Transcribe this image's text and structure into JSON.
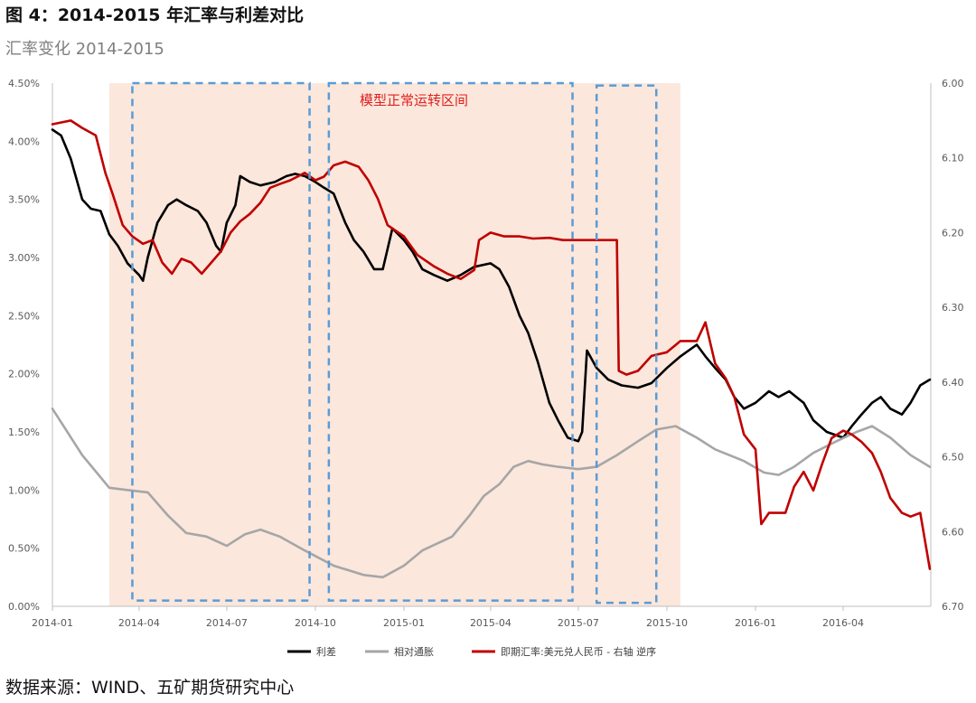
{
  "title": "图 4：2014-2015 年汇率与利差对比",
  "subtitle": "汇率变化 2014-2015",
  "source": "数据来源：WIND、五矿期货研究中心",
  "chart_data": {
    "type": "line",
    "x_ticks": [
      "2014-01",
      "2014-04",
      "2014-07",
      "2014-10",
      "2015-01",
      "2015-04",
      "2015-07",
      "2015-10",
      "2016-01",
      "2016-04"
    ],
    "x_range": [
      "2014-01-01",
      "2016-07-01"
    ],
    "y_left": {
      "ticks": [
        "0.00%",
        "0.50%",
        "1.00%",
        "1.50%",
        "2.00%",
        "2.50%",
        "3.00%",
        "3.50%",
        "4.00%",
        "4.50%"
      ],
      "range": [
        0,
        4.5
      ]
    },
    "y_right": {
      "ticks": [
        "6.00",
        "6.10",
        "6.20",
        "6.30",
        "6.40",
        "6.50",
        "6.60",
        "6.70"
      ],
      "range": [
        6.0,
        6.7
      ],
      "inverted": true
    },
    "grid": false,
    "legend_position": "bottom",
    "shaded_region": {
      "start": "2014-03-01",
      "end": "2015-10-15",
      "color": "#fbe7dc"
    },
    "annotation": {
      "text": "模型正常运转区间",
      "color": "#e02020"
    },
    "dashed_boxes": [
      {
        "start": "2014-03-25",
        "end": "2014-09-25",
        "top": 4.5,
        "bottom": 0.05
      },
      {
        "start": "2014-10-15",
        "end": "2015-06-25",
        "top": 4.5,
        "bottom": 0.05
      },
      {
        "start": "2015-07-20",
        "end": "2015-09-20",
        "top": 4.48,
        "bottom": 0.03
      }
    ],
    "series": [
      {
        "name": "利差",
        "axis": "left",
        "color": "#000000",
        "points": [
          [
            "2014-01-01",
            4.1
          ],
          [
            "2014-01-10",
            4.05
          ],
          [
            "2014-01-20",
            3.85
          ],
          [
            "2014-02-01",
            3.5
          ],
          [
            "2014-02-10",
            3.42
          ],
          [
            "2014-02-20",
            3.4
          ],
          [
            "2014-03-01",
            3.2
          ],
          [
            "2014-03-10",
            3.1
          ],
          [
            "2014-03-20",
            2.95
          ],
          [
            "2014-04-01",
            2.85
          ],
          [
            "2014-04-05",
            2.8
          ],
          [
            "2014-04-10",
            3.0
          ],
          [
            "2014-04-20",
            3.3
          ],
          [
            "2014-05-01",
            3.45
          ],
          [
            "2014-05-10",
            3.5
          ],
          [
            "2014-05-20",
            3.45
          ],
          [
            "2014-06-01",
            3.4
          ],
          [
            "2014-06-10",
            3.3
          ],
          [
            "2014-06-20",
            3.1
          ],
          [
            "2014-06-25",
            3.05
          ],
          [
            "2014-07-01",
            3.3
          ],
          [
            "2014-07-10",
            3.45
          ],
          [
            "2014-07-15",
            3.7
          ],
          [
            "2014-07-25",
            3.65
          ],
          [
            "2014-08-05",
            3.62
          ],
          [
            "2014-08-20",
            3.65
          ],
          [
            "2014-09-01",
            3.7
          ],
          [
            "2014-09-10",
            3.72
          ],
          [
            "2014-09-20",
            3.7
          ],
          [
            "2014-10-01",
            3.65
          ],
          [
            "2014-10-10",
            3.6
          ],
          [
            "2014-10-20",
            3.55
          ],
          [
            "2014-11-01",
            3.3
          ],
          [
            "2014-11-10",
            3.15
          ],
          [
            "2014-11-20",
            3.05
          ],
          [
            "2014-12-01",
            2.9
          ],
          [
            "2014-12-10",
            2.9
          ],
          [
            "2014-12-20",
            3.25
          ],
          [
            "2015-01-01",
            3.15
          ],
          [
            "2015-01-10",
            3.05
          ],
          [
            "2015-01-20",
            2.9
          ],
          [
            "2015-02-01",
            2.85
          ],
          [
            "2015-02-15",
            2.8
          ],
          [
            "2015-03-01",
            2.85
          ],
          [
            "2015-03-15",
            2.92
          ],
          [
            "2015-04-01",
            2.95
          ],
          [
            "2015-04-10",
            2.9
          ],
          [
            "2015-04-20",
            2.75
          ],
          [
            "2015-05-01",
            2.5
          ],
          [
            "2015-05-10",
            2.35
          ],
          [
            "2015-05-20",
            2.1
          ],
          [
            "2015-06-01",
            1.75
          ],
          [
            "2015-06-10",
            1.6
          ],
          [
            "2015-06-20",
            1.45
          ],
          [
            "2015-07-01",
            1.42
          ],
          [
            "2015-07-05",
            1.5
          ],
          [
            "2015-07-10",
            2.2
          ],
          [
            "2015-07-20",
            2.05
          ],
          [
            "2015-08-01",
            1.95
          ],
          [
            "2015-08-15",
            1.9
          ],
          [
            "2015-09-01",
            1.88
          ],
          [
            "2015-09-15",
            1.92
          ],
          [
            "2015-10-01",
            2.05
          ],
          [
            "2015-10-15",
            2.15
          ],
          [
            "2015-11-01",
            2.25
          ],
          [
            "2015-11-10",
            2.15
          ],
          [
            "2015-11-20",
            2.05
          ],
          [
            "2015-12-01",
            1.95
          ],
          [
            "2015-12-10",
            1.8
          ],
          [
            "2015-12-20",
            1.7
          ],
          [
            "2016-01-01",
            1.75
          ],
          [
            "2016-01-15",
            1.85
          ],
          [
            "2016-01-25",
            1.8
          ],
          [
            "2016-02-05",
            1.85
          ],
          [
            "2016-02-20",
            1.75
          ],
          [
            "2016-03-01",
            1.6
          ],
          [
            "2016-03-15",
            1.5
          ],
          [
            "2016-04-01",
            1.45
          ],
          [
            "2016-04-10",
            1.55
          ],
          [
            "2016-04-20",
            1.65
          ],
          [
            "2016-05-01",
            1.75
          ],
          [
            "2016-05-10",
            1.8
          ],
          [
            "2016-05-20",
            1.7
          ],
          [
            "2016-06-01",
            1.65
          ],
          [
            "2016-06-10",
            1.75
          ],
          [
            "2016-06-20",
            1.9
          ],
          [
            "2016-06-30",
            1.95
          ]
        ]
      },
      {
        "name": "相对通胀",
        "axis": "left",
        "color": "#a6a6a6",
        "points": [
          [
            "2014-01-01",
            1.7
          ],
          [
            "2014-02-01",
            1.3
          ],
          [
            "2014-03-01",
            1.02
          ],
          [
            "2014-03-20",
            1.0
          ],
          [
            "2014-04-10",
            0.98
          ],
          [
            "2014-05-01",
            0.78
          ],
          [
            "2014-05-20",
            0.63
          ],
          [
            "2014-06-10",
            0.6
          ],
          [
            "2014-07-01",
            0.52
          ],
          [
            "2014-07-20",
            0.62
          ],
          [
            "2014-08-05",
            0.66
          ],
          [
            "2014-08-25",
            0.6
          ],
          [
            "2014-09-20",
            0.48
          ],
          [
            "2014-10-20",
            0.35
          ],
          [
            "2014-11-20",
            0.27
          ],
          [
            "2014-12-10",
            0.25
          ],
          [
            "2015-01-01",
            0.35
          ],
          [
            "2015-01-20",
            0.48
          ],
          [
            "2015-02-20",
            0.6
          ],
          [
            "2015-03-10",
            0.78
          ],
          [
            "2015-03-25",
            0.95
          ],
          [
            "2015-04-10",
            1.05
          ],
          [
            "2015-04-25",
            1.2
          ],
          [
            "2015-05-10",
            1.25
          ],
          [
            "2015-05-25",
            1.22
          ],
          [
            "2015-06-10",
            1.2
          ],
          [
            "2015-07-01",
            1.18
          ],
          [
            "2015-07-20",
            1.2
          ],
          [
            "2015-08-10",
            1.3
          ],
          [
            "2015-09-01",
            1.42
          ],
          [
            "2015-09-20",
            1.52
          ],
          [
            "2015-10-10",
            1.55
          ],
          [
            "2015-11-01",
            1.45
          ],
          [
            "2015-11-20",
            1.35
          ],
          [
            "2015-12-20",
            1.25
          ],
          [
            "2016-01-10",
            1.15
          ],
          [
            "2016-01-25",
            1.13
          ],
          [
            "2016-02-10",
            1.2
          ],
          [
            "2016-03-01",
            1.32
          ],
          [
            "2016-03-25",
            1.42
          ],
          [
            "2016-04-15",
            1.5
          ],
          [
            "2016-05-01",
            1.55
          ],
          [
            "2016-05-20",
            1.45
          ],
          [
            "2016-06-10",
            1.3
          ],
          [
            "2016-06-30",
            1.2
          ]
        ]
      },
      {
        "name": "即期汇率:美元兑人民币 - 右轴 逆序",
        "axis": "right",
        "color": "#c00000",
        "points": [
          [
            "2014-01-01",
            6.055
          ],
          [
            "2014-01-20",
            6.05
          ],
          [
            "2014-02-01",
            6.06
          ],
          [
            "2014-02-15",
            6.07
          ],
          [
            "2014-02-25",
            6.12
          ],
          [
            "2014-03-05",
            6.15
          ],
          [
            "2014-03-15",
            6.19
          ],
          [
            "2014-03-25",
            6.205
          ],
          [
            "2014-04-05",
            6.215
          ],
          [
            "2014-04-15",
            6.21
          ],
          [
            "2014-04-25",
            6.24
          ],
          [
            "2014-05-05",
            6.255
          ],
          [
            "2014-05-15",
            6.235
          ],
          [
            "2014-05-25",
            6.24
          ],
          [
            "2014-06-05",
            6.255
          ],
          [
            "2014-06-15",
            6.24
          ],
          [
            "2014-06-25",
            6.225
          ],
          [
            "2014-07-05",
            6.2
          ],
          [
            "2014-07-15",
            6.185
          ],
          [
            "2014-07-25",
            6.175
          ],
          [
            "2014-08-05",
            6.16
          ],
          [
            "2014-08-15",
            6.14
          ],
          [
            "2014-08-25",
            6.135
          ],
          [
            "2014-09-05",
            6.13
          ],
          [
            "2014-09-20",
            6.12
          ],
          [
            "2014-10-01",
            6.13
          ],
          [
            "2014-10-10",
            6.125
          ],
          [
            "2014-10-20",
            6.11
          ],
          [
            "2014-11-01",
            6.105
          ],
          [
            "2014-11-15",
            6.112
          ],
          [
            "2014-11-25",
            6.13
          ],
          [
            "2014-12-05",
            6.155
          ],
          [
            "2014-12-15",
            6.19
          ],
          [
            "2015-01-01",
            6.205
          ],
          [
            "2015-01-15",
            6.23
          ],
          [
            "2015-02-01",
            6.245
          ],
          [
            "2015-02-15",
            6.255
          ],
          [
            "2015-03-01",
            6.262
          ],
          [
            "2015-03-15",
            6.25
          ],
          [
            "2015-03-20",
            6.21
          ],
          [
            "2015-04-01",
            6.2
          ],
          [
            "2015-04-15",
            6.205
          ],
          [
            "2015-05-01",
            6.205
          ],
          [
            "2015-05-15",
            6.208
          ],
          [
            "2015-06-01",
            6.207
          ],
          [
            "2015-06-15",
            6.21
          ],
          [
            "2015-07-01",
            6.21
          ],
          [
            "2015-08-10",
            6.21
          ],
          [
            "2015-08-12",
            6.385
          ],
          [
            "2015-08-20",
            6.39
          ],
          [
            "2015-09-01",
            6.385
          ],
          [
            "2015-09-15",
            6.365
          ],
          [
            "2015-10-01",
            6.36
          ],
          [
            "2015-10-15",
            6.345
          ],
          [
            "2015-11-01",
            6.345
          ],
          [
            "2015-11-10",
            6.32
          ],
          [
            "2015-11-20",
            6.375
          ],
          [
            "2015-12-01",
            6.395
          ],
          [
            "2015-12-10",
            6.42
          ],
          [
            "2015-12-20",
            6.47
          ],
          [
            "2016-01-01",
            6.49
          ],
          [
            "2016-01-07",
            6.59
          ],
          [
            "2016-01-15",
            6.575
          ],
          [
            "2016-02-01",
            6.575
          ],
          [
            "2016-02-10",
            6.54
          ],
          [
            "2016-02-20",
            6.52
          ],
          [
            "2016-03-01",
            6.545
          ],
          [
            "2016-03-10",
            6.51
          ],
          [
            "2016-03-20",
            6.475
          ],
          [
            "2016-04-01",
            6.465
          ],
          [
            "2016-04-10",
            6.47
          ],
          [
            "2016-04-20",
            6.48
          ],
          [
            "2016-05-01",
            6.495
          ],
          [
            "2016-05-10",
            6.52
          ],
          [
            "2016-05-20",
            6.555
          ],
          [
            "2016-06-01",
            6.575
          ],
          [
            "2016-06-10",
            6.58
          ],
          [
            "2016-06-20",
            6.575
          ],
          [
            "2016-06-30",
            6.65
          ]
        ]
      }
    ]
  }
}
